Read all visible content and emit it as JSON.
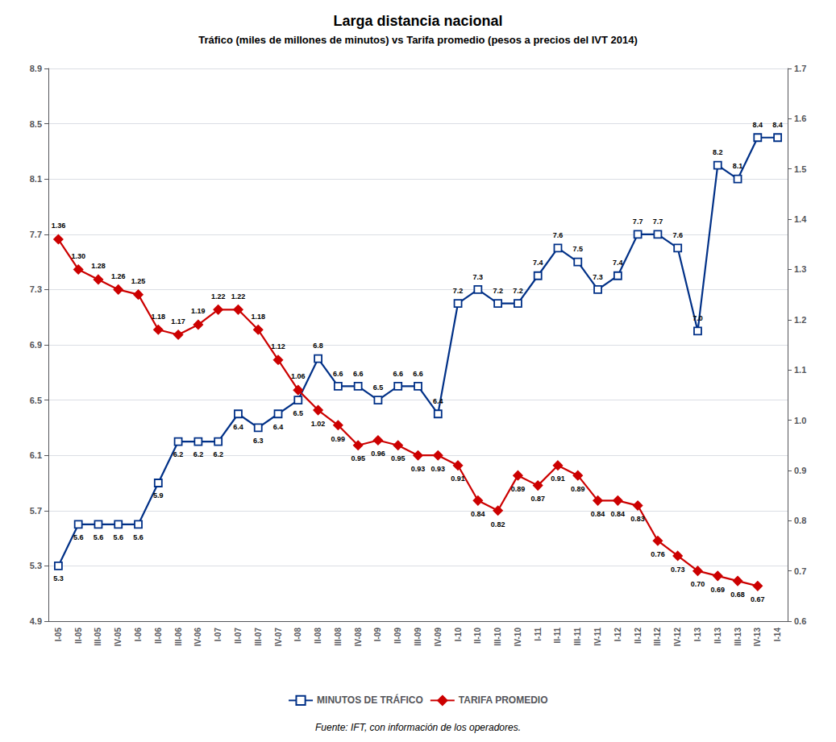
{
  "chart_data": {
    "type": "line",
    "title": "Larga distancia nacional",
    "subtitle": "Tráfico (miles de millones de minutos) vs Tarifa promedio (pesos a precios del IVT 2014)",
    "annotations": [
      "Fuente: IFT, con información de los operadores."
    ],
    "categories": [
      "I-05",
      "II-05",
      "III-05",
      "IV-05",
      "I-06",
      "II-06",
      "III-06",
      "IV-06",
      "I-07",
      "II-07",
      "III-07",
      "IV-07",
      "I-08",
      "II-08",
      "III-08",
      "IV-08",
      "I-09",
      "II-09",
      "III-09",
      "IV-09",
      "I-10",
      "II-10",
      "III-10",
      "IV-10",
      "I-11",
      "II-11",
      "III-11",
      "IV-11",
      "I-12",
      "II-12",
      "III-12",
      "IV-12",
      "I-13",
      "II-13",
      "III-13",
      "IV-13",
      "I-14"
    ],
    "series": [
      {
        "name": "MINUTOS DE TRÁFICO",
        "color": "#003087",
        "marker": "square",
        "axis": "y",
        "values": [
          5.3,
          5.6,
          5.6,
          5.6,
          5.6,
          5.9,
          6.2,
          6.2,
          6.2,
          6.4,
          6.3,
          6.4,
          6.5,
          6.8,
          6.6,
          6.6,
          6.5,
          6.6,
          6.6,
          6.4,
          7.2,
          7.3,
          7.2,
          7.2,
          7.4,
          7.6,
          7.5,
          7.3,
          7.4,
          7.7,
          7.7,
          7.6,
          7.0,
          8.2,
          8.1,
          8.4,
          8.4
        ],
        "value_labels": [
          "5.3",
          "5.6",
          "5.6",
          "5.6",
          "5.6",
          "5.9",
          "6.2",
          "6.2",
          "6.2",
          "6.4",
          "6.3",
          "6.4",
          "6.5",
          "6.8",
          "6.6",
          "6.6",
          "6.5",
          "6.6",
          "6.6",
          "6.4",
          "7.2",
          "7.3",
          "7.2",
          "7.2",
          "7.4",
          "7.6",
          "7.5",
          "7.3",
          "7.4",
          "7.7",
          "7.7",
          "7.6",
          "7.0",
          "8.2",
          "8.1",
          "8.4",
          "8.4"
        ]
      },
      {
        "name": "TARIFA PROMEDIO",
        "color": "#cc0000",
        "marker": "diamond",
        "axis": "y2",
        "values": [
          1.36,
          1.3,
          1.28,
          1.26,
          1.25,
          1.18,
          1.17,
          1.19,
          1.22,
          1.22,
          1.18,
          1.12,
          1.06,
          1.02,
          0.99,
          0.95,
          0.96,
          0.95,
          0.93,
          0.93,
          0.91,
          0.84,
          0.82,
          0.89,
          0.87,
          0.91,
          0.89,
          0.84,
          0.84,
          0.83,
          0.76,
          0.73,
          0.7,
          0.69,
          0.68,
          0.67,
          null
        ],
        "value_labels": [
          "1.36",
          "1.30",
          "1.28",
          "1.26",
          "1.25",
          "1.18",
          "1.17",
          "1.19",
          "1.22",
          "1.22",
          "1.18",
          "1.12",
          "1.06",
          "1.02",
          "0.99",
          "0.95",
          "0.96",
          "0.95",
          "0.93",
          "0.93",
          "0.91",
          "0.84",
          "0.82",
          "0.89",
          "0.87",
          "0.91",
          "0.89",
          "0.84",
          "0.84",
          "0.83",
          "0.76",
          "0.73",
          "0.70",
          "0.69",
          "0.68",
          "0.67",
          null
        ]
      }
    ],
    "ylim": [
      4.9,
      8.9
    ],
    "yticks": [
      4.9,
      5.3,
      5.7,
      6.1,
      6.5,
      6.9,
      7.3,
      7.7,
      8.1,
      8.5,
      8.9
    ],
    "y2lim": [
      0.6,
      1.7
    ],
    "y2ticks": [
      0.6,
      0.7,
      0.8,
      0.9,
      {
        "value": 1.0,
        "label": "1.0"
      },
      1.1,
      1.2,
      1.3,
      1.4,
      1.5,
      1.6,
      1.7
    ],
    "grid": true,
    "legend": "bottom",
    "data_labels": true
  }
}
